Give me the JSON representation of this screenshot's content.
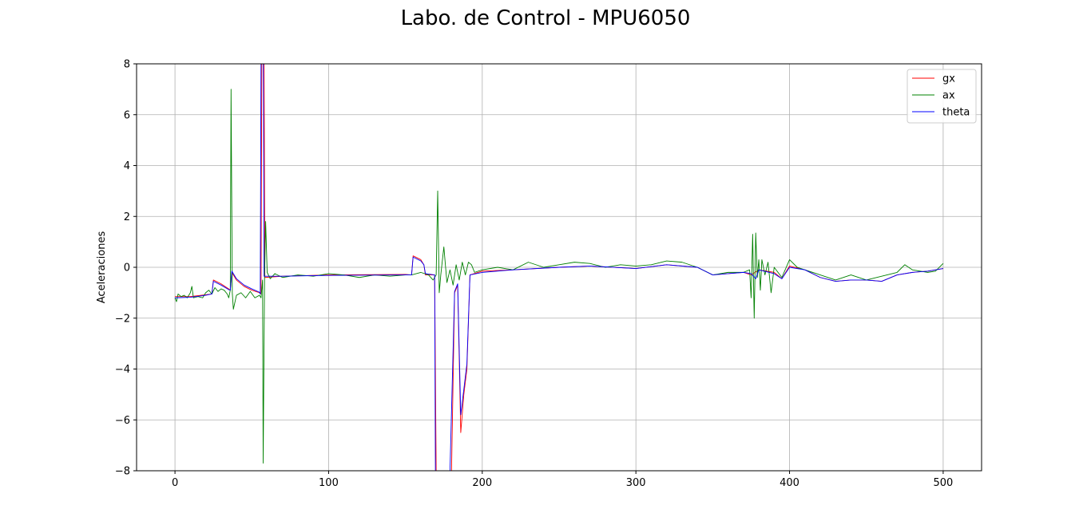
{
  "figure": {
    "title": "Labo. de Control - MPU6050"
  },
  "chart_data": {
    "type": "line",
    "title": "Labo. de Control - MPU6050",
    "xlabel": "",
    "ylabel": "Aceleraciones",
    "xlim": [
      -25,
      525
    ],
    "ylim": [
      -8,
      8
    ],
    "xticks": [
      0,
      100,
      200,
      300,
      400,
      500
    ],
    "yticks": [
      -8,
      -6,
      -4,
      -2,
      0,
      2,
      4,
      6,
      8
    ],
    "grid": true,
    "legend_position": "top-right",
    "series": [
      {
        "name": "gx",
        "color": "#ff0000",
        "points": [
          [
            0,
            -1.15
          ],
          [
            10,
            -1.15
          ],
          [
            20,
            -1.08
          ],
          [
            24,
            -1.05
          ],
          [
            25,
            -0.5
          ],
          [
            30,
            -0.65
          ],
          [
            35,
            -0.85
          ],
          [
            36,
            -0.9
          ],
          [
            37,
            -0.2
          ],
          [
            40,
            -0.5
          ],
          [
            45,
            -0.75
          ],
          [
            50,
            -0.9
          ],
          [
            55,
            -1.0
          ],
          [
            56,
            -1.05
          ],
          [
            56.5,
            8.0
          ],
          [
            58,
            8.0
          ],
          [
            58.5,
            -0.4
          ],
          [
            70,
            -0.35
          ],
          [
            100,
            -0.3
          ],
          [
            150,
            -0.28
          ],
          [
            154,
            -0.3
          ],
          [
            155,
            0.45
          ],
          [
            160,
            0.3
          ],
          [
            162,
            0.1
          ],
          [
            163,
            -0.3
          ],
          [
            169,
            -0.3
          ],
          [
            170,
            -8.0
          ],
          [
            180,
            -8.0
          ],
          [
            182,
            -1.0
          ],
          [
            184,
            -0.7
          ],
          [
            186,
            -6.5
          ],
          [
            188,
            -5.0
          ],
          [
            190,
            -4.0
          ],
          [
            192,
            -0.3
          ],
          [
            200,
            -0.15
          ],
          [
            220,
            -0.1
          ],
          [
            250,
            0.0
          ],
          [
            270,
            0.05
          ],
          [
            300,
            -0.05
          ],
          [
            320,
            0.1
          ],
          [
            340,
            0.0
          ],
          [
            350,
            -0.3
          ],
          [
            360,
            -0.25
          ],
          [
            370,
            -0.2
          ],
          [
            375,
            -0.3
          ],
          [
            380,
            -0.1
          ],
          [
            390,
            -0.2
          ],
          [
            395,
            -0.45
          ],
          [
            400,
            0.05
          ],
          [
            410,
            -0.1
          ],
          [
            420,
            -0.4
          ],
          [
            430,
            -0.55
          ],
          [
            440,
            -0.5
          ],
          [
            450,
            -0.5
          ],
          [
            460,
            -0.55
          ],
          [
            470,
            -0.3
          ],
          [
            480,
            -0.2
          ],
          [
            490,
            -0.15
          ],
          [
            500,
            -0.05
          ]
        ]
      },
      {
        "name": "ax",
        "color": "#008000",
        "points": [
          [
            0,
            -1.2
          ],
          [
            1,
            -1.35
          ],
          [
            2,
            -1.05
          ],
          [
            4,
            -1.15
          ],
          [
            6,
            -1.1
          ],
          [
            8,
            -1.2
          ],
          [
            10,
            -1.0
          ],
          [
            11,
            -0.75
          ],
          [
            12,
            -1.2
          ],
          [
            15,
            -1.15
          ],
          [
            18,
            -1.2
          ],
          [
            20,
            -1.0
          ],
          [
            22,
            -0.9
          ],
          [
            24,
            -1.05
          ],
          [
            26,
            -0.8
          ],
          [
            28,
            -0.95
          ],
          [
            30,
            -0.85
          ],
          [
            32,
            -0.9
          ],
          [
            34,
            -1.05
          ],
          [
            35,
            -1.2
          ],
          [
            36,
            -0.9
          ],
          [
            36.5,
            7.0
          ],
          [
            37.3,
            -1.0
          ],
          [
            38,
            -1.65
          ],
          [
            40,
            -1.1
          ],
          [
            43,
            -1.0
          ],
          [
            46,
            -1.2
          ],
          [
            49,
            -0.95
          ],
          [
            52,
            -1.2
          ],
          [
            55,
            -1.1
          ],
          [
            56,
            -1.2
          ],
          [
            57,
            -0.5
          ],
          [
            57.4,
            -7.7
          ],
          [
            58.3,
            -0.4
          ],
          [
            59,
            1.8
          ],
          [
            60,
            -0.2
          ],
          [
            62,
            -0.45
          ],
          [
            65,
            -0.25
          ],
          [
            70,
            -0.4
          ],
          [
            80,
            -0.3
          ],
          [
            90,
            -0.35
          ],
          [
            100,
            -0.25
          ],
          [
            110,
            -0.3
          ],
          [
            120,
            -0.4
          ],
          [
            130,
            -0.3
          ],
          [
            140,
            -0.35
          ],
          [
            150,
            -0.3
          ],
          [
            154,
            -0.3
          ],
          [
            160,
            -0.2
          ],
          [
            165,
            -0.3
          ],
          [
            168,
            -0.5
          ],
          [
            170,
            -0.3
          ],
          [
            171,
            3.0
          ],
          [
            172,
            -1.0
          ],
          [
            173,
            -0.3
          ],
          [
            175,
            0.8
          ],
          [
            177,
            -0.6
          ],
          [
            179,
            -0.1
          ],
          [
            181,
            -0.7
          ],
          [
            183,
            0.1
          ],
          [
            185,
            -0.5
          ],
          [
            187,
            0.2
          ],
          [
            189,
            -0.3
          ],
          [
            191,
            0.2
          ],
          [
            193,
            0.1
          ],
          [
            195,
            -0.2
          ],
          [
            200,
            -0.1
          ],
          [
            210,
            0.0
          ],
          [
            220,
            -0.1
          ],
          [
            230,
            0.2
          ],
          [
            240,
            0.0
          ],
          [
            250,
            0.1
          ],
          [
            260,
            0.2
          ],
          [
            270,
            0.15
          ],
          [
            280,
            0.0
          ],
          [
            290,
            0.1
          ],
          [
            300,
            0.05
          ],
          [
            310,
            0.1
          ],
          [
            320,
            0.25
          ],
          [
            330,
            0.2
          ],
          [
            340,
            0.0
          ],
          [
            350,
            -0.3
          ],
          [
            360,
            -0.2
          ],
          [
            370,
            -0.2
          ],
          [
            374,
            -0.1
          ],
          [
            375,
            -1.2
          ],
          [
            376,
            1.3
          ],
          [
            377,
            -2.0
          ],
          [
            378,
            1.35
          ],
          [
            379,
            -0.4
          ],
          [
            380,
            0.3
          ],
          [
            381,
            -0.9
          ],
          [
            382,
            0.3
          ],
          [
            384,
            -0.3
          ],
          [
            386,
            0.2
          ],
          [
            388,
            -1.0
          ],
          [
            390,
            0.0
          ],
          [
            395,
            -0.4
          ],
          [
            400,
            0.3
          ],
          [
            405,
            0.0
          ],
          [
            410,
            -0.1
          ],
          [
            420,
            -0.3
          ],
          [
            430,
            -0.5
          ],
          [
            440,
            -0.3
          ],
          [
            450,
            -0.5
          ],
          [
            460,
            -0.35
          ],
          [
            470,
            -0.2
          ],
          [
            475,
            0.1
          ],
          [
            480,
            -0.1
          ],
          [
            490,
            -0.2
          ],
          [
            495,
            -0.15
          ],
          [
            500,
            0.15
          ]
        ]
      },
      {
        "name": "theta",
        "color": "#0000ff",
        "points": [
          [
            0,
            -1.2
          ],
          [
            10,
            -1.18
          ],
          [
            20,
            -1.1
          ],
          [
            24,
            -1.05
          ],
          [
            25,
            -0.55
          ],
          [
            30,
            -0.7
          ],
          [
            35,
            -0.88
          ],
          [
            36,
            -0.9
          ],
          [
            37,
            -0.15
          ],
          [
            40,
            -0.45
          ],
          [
            45,
            -0.7
          ],
          [
            50,
            -0.85
          ],
          [
            55,
            -0.98
          ],
          [
            55.5,
            -1.05
          ],
          [
            56,
            8.0
          ],
          [
            57.5,
            8.0
          ],
          [
            58,
            -0.35
          ],
          [
            70,
            -0.35
          ],
          [
            100,
            -0.32
          ],
          [
            150,
            -0.3
          ],
          [
            154,
            -0.3
          ],
          [
            155,
            0.4
          ],
          [
            160,
            0.25
          ],
          [
            162,
            0.1
          ],
          [
            163,
            -0.25
          ],
          [
            169,
            -0.3
          ],
          [
            169.5,
            -8.0
          ],
          [
            179,
            -8.0
          ],
          [
            182,
            -0.95
          ],
          [
            184,
            -0.65
          ],
          [
            186,
            -5.8
          ],
          [
            188,
            -4.8
          ],
          [
            190,
            -3.8
          ],
          [
            192,
            -0.3
          ],
          [
            200,
            -0.2
          ],
          [
            220,
            -0.1
          ],
          [
            250,
            0.0
          ],
          [
            270,
            0.05
          ],
          [
            300,
            -0.05
          ],
          [
            320,
            0.1
          ],
          [
            340,
            0.0
          ],
          [
            350,
            -0.3
          ],
          [
            360,
            -0.25
          ],
          [
            370,
            -0.2
          ],
          [
            375,
            -0.25
          ],
          [
            378,
            -0.45
          ],
          [
            380,
            -0.1
          ],
          [
            390,
            -0.25
          ],
          [
            395,
            -0.45
          ],
          [
            400,
            0.0
          ],
          [
            410,
            -0.1
          ],
          [
            420,
            -0.4
          ],
          [
            430,
            -0.55
          ],
          [
            440,
            -0.5
          ],
          [
            450,
            -0.5
          ],
          [
            460,
            -0.55
          ],
          [
            470,
            -0.3
          ],
          [
            480,
            -0.2
          ],
          [
            490,
            -0.15
          ],
          [
            500,
            -0.05
          ]
        ]
      }
    ]
  }
}
